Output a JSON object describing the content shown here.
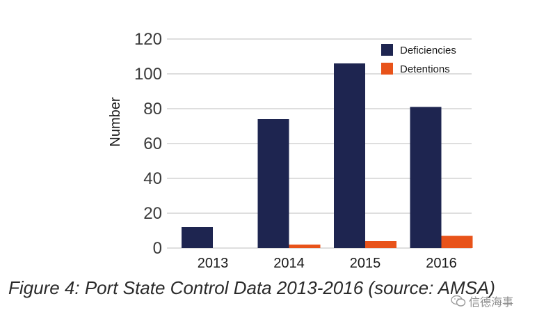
{
  "chart_data": {
    "type": "bar",
    "categories": [
      "2013",
      "2014",
      "2015",
      "2016"
    ],
    "series": [
      {
        "name": "Deficiencies",
        "color": "#1e2550",
        "values": [
          12,
          74,
          106,
          81
        ]
      },
      {
        "name": "Detentions",
        "color": "#e8531a",
        "values": [
          0,
          2,
          4,
          7
        ]
      }
    ],
    "ylabel": "Number",
    "xlabel": "",
    "ylim": [
      0,
      120
    ],
    "yticks": [
      0,
      20,
      40,
      60,
      80,
      100,
      120
    ],
    "grid": true,
    "legend": "top-right"
  },
  "caption": "Figure 4:  Port State Control Data 2013-2016 (source: AMSA)",
  "watermark": {
    "text": "信德海事",
    "icon": "wechat-icon"
  }
}
